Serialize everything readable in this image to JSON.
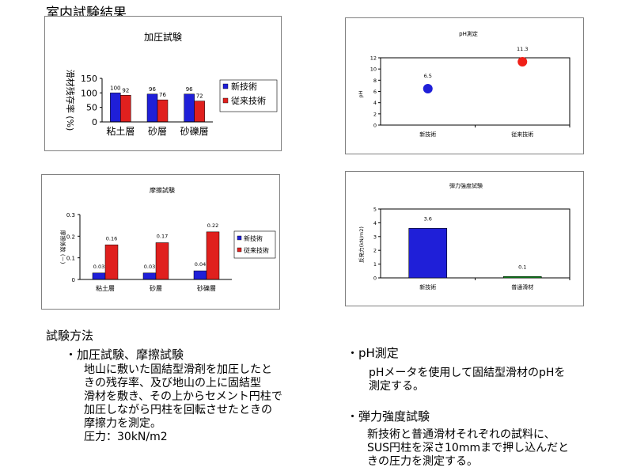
{
  "page": {
    "title": "室内試験結果"
  },
  "methods": {
    "heading": "試験方法",
    "pressure": {
      "title": "・加圧試験、摩擦試験",
      "lines": [
        "地山に敷いた固結型滑剤を加圧したと",
        "きの残存率、及び地山の上に固結型",
        "滑材を敷き、その上からセメント円柱で",
        "加圧しながら円柱を回転させたときの",
        "摩擦力を測定。",
        "圧力：30kN/m2"
      ]
    },
    "ph": {
      "title": "・pH測定",
      "lines": [
        "pHメータを使用して固結型滑材のpHを",
        "測定する。"
      ]
    },
    "elastic": {
      "title": "・弾力強度試験",
      "lines": [
        "新技術と普通滑材それぞれの試料に、",
        "SUS円柱を深さ10mmまで押し込んだと",
        "きの圧力を測定する。"
      ]
    }
  },
  "colors": {
    "new": "#1f1fd8",
    "old": "#e0201e",
    "old_point": "#f02018",
    "normal": "#10a020",
    "frame": "#808080"
  },
  "chart_data": [
    {
      "id": "pressure",
      "type": "bar",
      "title": "加圧試験",
      "ylabel": "滑材残存率 (%)",
      "xlabel": "",
      "categories": [
        "粘土層",
        "砂層",
        "砂礫層"
      ],
      "series": [
        {
          "name": "新技術",
          "values": [
            100,
            96,
            96
          ],
          "labels": [
            "100",
            "96",
            "96"
          ]
        },
        {
          "name": "従来技術",
          "values": [
            92,
            76,
            72
          ],
          "labels": [
            "92",
            "76",
            "72"
          ]
        }
      ],
      "ylim": [
        0,
        150
      ],
      "yticks": [
        "0",
        "50",
        "100",
        "150"
      ],
      "legend": "right"
    },
    {
      "id": "ph",
      "type": "scatter",
      "title": "pH測定",
      "ylabel": "pH",
      "xlabel": "",
      "categories": [
        "新技術",
        "従来技術"
      ],
      "values": [
        6.5,
        11.3
      ],
      "labels": [
        "6.5",
        "11.3"
      ],
      "ylim": [
        0,
        12
      ],
      "yticks": [
        "0",
        "2",
        "4",
        "6",
        "8",
        "10",
        "12"
      ]
    },
    {
      "id": "friction",
      "type": "bar",
      "title": "摩擦試験",
      "ylabel": "摩擦係数 (－)",
      "xlabel": "",
      "categories": [
        "粘土層",
        "砂層",
        "砂礫層"
      ],
      "series": [
        {
          "name": "新技術",
          "values": [
            0.03,
            0.03,
            0.04
          ],
          "labels": [
            "0.03",
            "0.03",
            "0.04"
          ]
        },
        {
          "name": "従来技術",
          "values": [
            0.16,
            0.17,
            0.22
          ],
          "labels": [
            "0.16",
            "0.17",
            "0.22"
          ]
        }
      ],
      "ylim": [
        0,
        0.3
      ],
      "yticks": [
        "0",
        "0.1",
        "0.2",
        "0.3"
      ],
      "legend": "right"
    },
    {
      "id": "elastic",
      "type": "bar",
      "title": "弾力強度試験",
      "ylabel": "反発力(kN/m2)",
      "xlabel": "",
      "categories": [
        "新技術",
        "普通滑材"
      ],
      "values": [
        3.6,
        0.1
      ],
      "labels": [
        "3.6",
        "0.1"
      ],
      "ylim": [
        0,
        5
      ],
      "yticks": [
        "0",
        "1",
        "2",
        "3",
        "4",
        "5"
      ]
    }
  ]
}
